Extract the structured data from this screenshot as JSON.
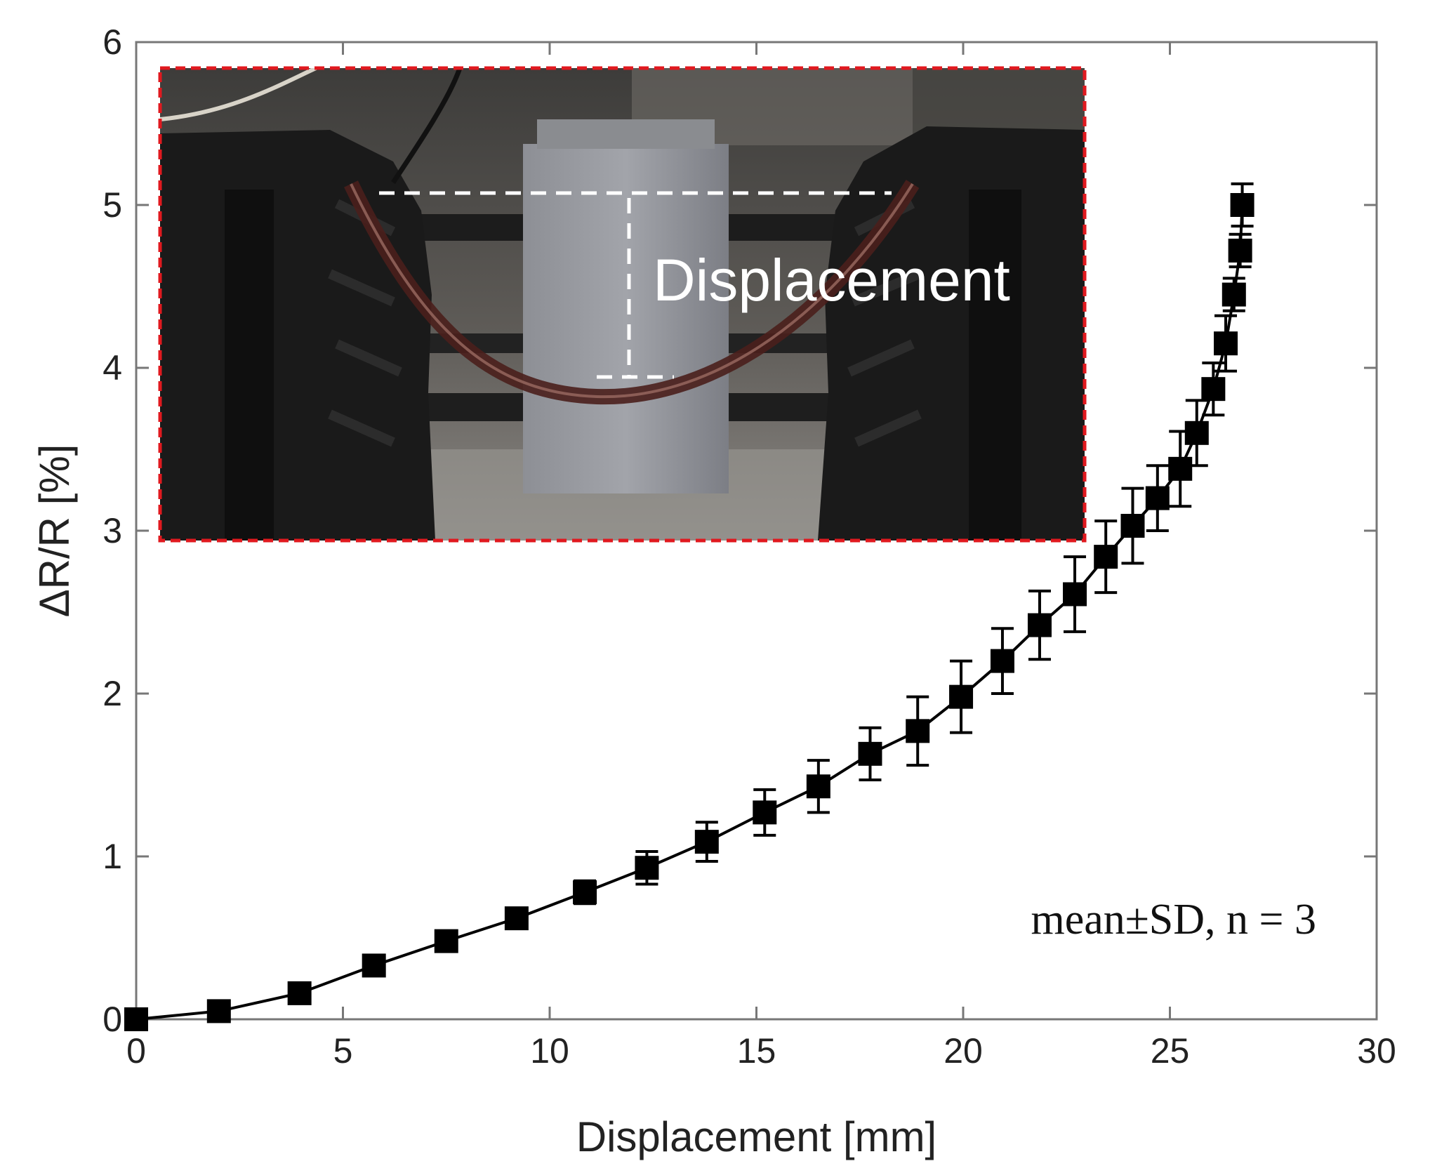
{
  "chart_data": {
    "type": "scatter",
    "title": "",
    "xlabel": "Displacement [mm]",
    "ylabel": "ΔR/R [%]",
    "xlim": [
      0,
      30
    ],
    "ylim": [
      0,
      6
    ],
    "x_ticks": [
      0,
      5,
      10,
      15,
      20,
      25,
      30
    ],
    "y_ticks": [
      0,
      1,
      2,
      3,
      4,
      5,
      6
    ],
    "grid": false,
    "marker": "square",
    "line": "solid",
    "error_bars": "mean±SD",
    "annotation": "mean±SD, n = 3",
    "inset_label": "Displacement",
    "series": [
      {
        "x": [
          0,
          2.0,
          3.95,
          5.75,
          7.5,
          9.2,
          10.85,
          12.35,
          13.8,
          15.2,
          16.5,
          17.75,
          18.9,
          19.95,
          20.95,
          21.85,
          22.7,
          23.45,
          24.1,
          24.7,
          25.25,
          25.65,
          26.05,
          26.35,
          26.55,
          26.7,
          26.75
        ],
        "y": [
          0,
          0.05,
          0.16,
          0.33,
          0.48,
          0.62,
          0.78,
          0.93,
          1.09,
          1.27,
          1.43,
          1.63,
          1.77,
          1.98,
          2.2,
          2.42,
          2.61,
          2.84,
          3.03,
          3.2,
          3.38,
          3.6,
          3.87,
          4.15,
          4.45,
          4.72,
          5.0
        ],
        "err": [
          0,
          0.02,
          0.04,
          0.04,
          0.04,
          0.05,
          0.07,
          0.1,
          0.12,
          0.14,
          0.16,
          0.16,
          0.21,
          0.22,
          0.2,
          0.21,
          0.23,
          0.22,
          0.23,
          0.2,
          0.23,
          0.2,
          0.16,
          0.17,
          0.1,
          0.1,
          0.13
        ]
      }
    ]
  }
}
